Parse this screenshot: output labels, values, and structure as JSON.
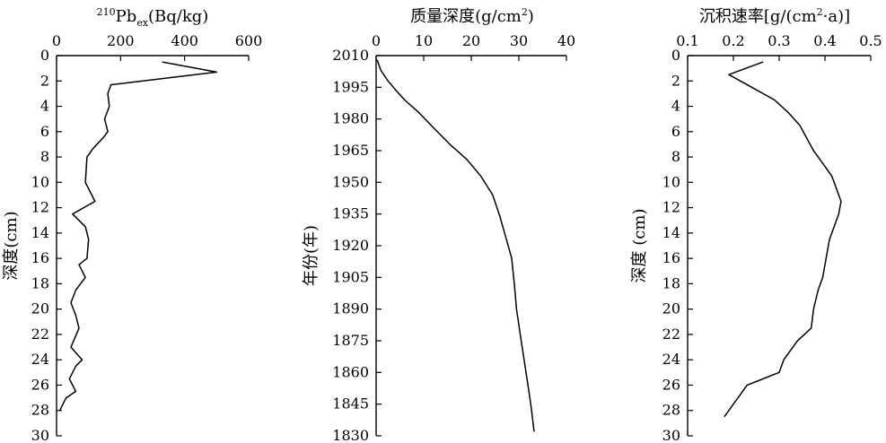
{
  "chart_data": [
    {
      "type": "line",
      "title": "",
      "xlabel": {
        "super": "210",
        "main": "Pb",
        "sub": "ex",
        "tail": "(Bq/kg)"
      },
      "ylabel": "深度(cm)",
      "xlim": [
        0,
        600
      ],
      "ylim": [
        0,
        30
      ],
      "y_inverted": true,
      "x_axis_position": "top",
      "x_ticks": [
        0,
        200,
        400,
        600
      ],
      "x_tick_labels": [
        "0",
        "200",
        "400",
        "600"
      ],
      "y_ticks": [
        0,
        2,
        4,
        6,
        8,
        10,
        12,
        14,
        16,
        18,
        20,
        22,
        24,
        26,
        28,
        30
      ],
      "y_tick_labels": [
        "0",
        "2",
        "4",
        "6",
        "8",
        "10",
        "12",
        "14",
        "16",
        "18",
        "20",
        "22",
        "24",
        "26",
        "28",
        "30"
      ],
      "series": [
        {
          "x": [
            330,
            500,
            170,
            160,
            165,
            150,
            160,
            145,
            115,
            95,
            90,
            120,
            50,
            90,
            100,
            95,
            70,
            90,
            60,
            45,
            60,
            70,
            45,
            80,
            60,
            40,
            60,
            30,
            10
          ],
          "y": [
            0.5,
            1.3,
            2.3,
            3.0,
            4.0,
            5.0,
            6.0,
            6.5,
            7.3,
            8.0,
            10.0,
            11.5,
            12.5,
            13.5,
            14.5,
            16.0,
            16.5,
            17.5,
            18.5,
            19.5,
            20.5,
            21.5,
            23.0,
            24.0,
            24.5,
            25.5,
            26.5,
            27.0,
            28.0
          ]
        }
      ]
    },
    {
      "type": "line",
      "title": "",
      "xlabel": {
        "main": "质量深度(g/cm",
        "sup": "2",
        "tail": ")"
      },
      "ylabel": "年份(年)",
      "xlim": [
        0,
        40
      ],
      "ylim": [
        1830,
        2010
      ],
      "y_inverted": true,
      "x_axis_position": "top",
      "x_ticks": [
        0,
        10,
        20,
        30,
        40
      ],
      "x_tick_labels": [
        "0",
        "10",
        "20",
        "30",
        "40"
      ],
      "y_ticks": [
        2010,
        1995,
        1980,
        1965,
        1950,
        1935,
        1920,
        1905,
        1890,
        1875,
        1860,
        1845,
        1830
      ],
      "y_tick_labels": [
        "2010",
        "1995",
        "1980",
        "1965",
        "1950",
        "1935",
        "1920",
        "1905",
        "1890",
        "1875",
        "1860",
        "1845",
        "1830"
      ],
      "series": [
        {
          "x": [
            0.2,
            1.0,
            2.5,
            4.0,
            6.0,
            9.0,
            12.0,
            15.5,
            19.0,
            22.0,
            24.5,
            26.0,
            27.5,
            28.5,
            29.0,
            29.5,
            30.5,
            31.5,
            32.5,
            33.2
          ],
          "y": [
            2008,
            2003,
            1998,
            1994,
            1989,
            1983,
            1976,
            1968,
            1961,
            1953,
            1944,
            1934,
            1922,
            1914,
            1903,
            1890,
            1875,
            1860,
            1845,
            1832
          ]
        }
      ]
    },
    {
      "type": "line",
      "title": "",
      "xlabel": {
        "main": "沉积速率[g/(cm",
        "sup": "2",
        "tail": "·a)]"
      },
      "ylabel": "深度 (cm)",
      "xlim": [
        0.1,
        0.5
      ],
      "ylim": [
        0,
        30
      ],
      "y_inverted": true,
      "x_axis_position": "top",
      "x_ticks": [
        0.1,
        0.2,
        0.3,
        0.4,
        0.5
      ],
      "x_tick_labels": [
        "0.1",
        "0.2",
        "0.3",
        "0.4",
        "0.5"
      ],
      "y_ticks": [
        0,
        2,
        4,
        6,
        8,
        10,
        12,
        14,
        16,
        18,
        20,
        22,
        24,
        26,
        28,
        30
      ],
      "y_tick_labels": [
        "0",
        "2",
        "4",
        "6",
        "8",
        "10",
        "12",
        "14",
        "16",
        "18",
        "20",
        "22",
        "24",
        "26",
        "28",
        "30"
      ],
      "series": [
        {
          "x": [
            0.265,
            0.19,
            0.24,
            0.29,
            0.32,
            0.345,
            0.36,
            0.375,
            0.395,
            0.415,
            0.425,
            0.435,
            0.43,
            0.42,
            0.41,
            0.405,
            0.4,
            0.395,
            0.385,
            0.375,
            0.37,
            0.34,
            0.31,
            0.3,
            0.23,
            0.21,
            0.18
          ],
          "y": [
            0.5,
            1.5,
            2.5,
            3.5,
            4.5,
            5.5,
            6.5,
            7.5,
            8.5,
            9.5,
            10.5,
            11.5,
            12.5,
            13.5,
            14.5,
            15.5,
            16.5,
            17.5,
            18.5,
            20.0,
            21.5,
            22.5,
            24.0,
            25.0,
            26.0,
            27.0,
            28.5
          ]
        }
      ]
    }
  ]
}
